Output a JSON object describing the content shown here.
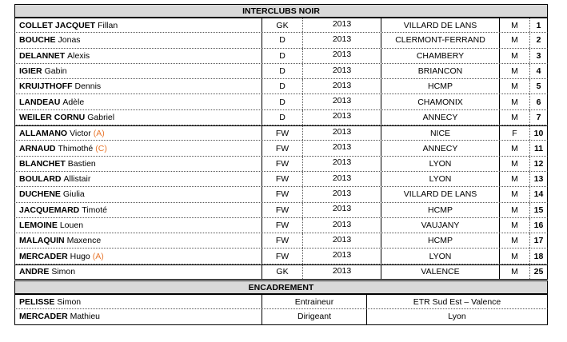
{
  "team": {
    "title": "INTERCLUBS NOIR",
    "players": [
      {
        "last": "COLLET JACQUET",
        "first": "Fillan",
        "tag": "",
        "pos": "GK",
        "year": "2013",
        "city": "VILLARD DE LANS",
        "sex": "M",
        "num": "1"
      },
      {
        "last": "BOUCHE",
        "first": "Jonas",
        "tag": "",
        "pos": "D",
        "year": "2013",
        "city": "CLERMONT-FERRAND",
        "sex": "M",
        "num": "2"
      },
      {
        "last": "DELANNET",
        "first": "Alexis",
        "tag": "",
        "pos": "D",
        "year": "2013",
        "city": "CHAMBERY",
        "sex": "M",
        "num": "3"
      },
      {
        "last": "IGIER",
        "first": "Gabin",
        "tag": "",
        "pos": "D",
        "year": "2013",
        "city": "BRIANCON",
        "sex": "M",
        "num": "4"
      },
      {
        "last": "KRUIJTHOFF",
        "first": "Dennis",
        "tag": "",
        "pos": "D",
        "year": "2013",
        "city": "HCMP",
        "sex": "M",
        "num": "5"
      },
      {
        "last": "LANDEAU",
        "first": "Adèle",
        "tag": "",
        "pos": "D",
        "year": "2013",
        "city": "CHAMONIX",
        "sex": "M",
        "num": "6"
      },
      {
        "last": "WEILER CORNU",
        "first": "Gabriel",
        "tag": "",
        "pos": "D",
        "year": "2013",
        "city": "ANNECY",
        "sex": "M",
        "num": "7"
      },
      {
        "last": "ALLAMANO",
        "first": "Victor",
        "tag": "(A)",
        "pos": "FW",
        "year": "2013",
        "city": "NICE",
        "sex": "F",
        "num": "10"
      },
      {
        "last": "ARNAUD",
        "first": "Thimothé",
        "tag": "(C)",
        "pos": "FW",
        "year": "2013",
        "city": "ANNECY",
        "sex": "M",
        "num": "11"
      },
      {
        "last": "BLANCHET",
        "first": "Bastien",
        "tag": "",
        "pos": "FW",
        "year": "2013",
        "city": "LYON",
        "sex": "M",
        "num": "12"
      },
      {
        "last": "BOULARD",
        "first": "Allistair",
        "tag": "",
        "pos": "FW",
        "year": "2013",
        "city": "LYON",
        "sex": "M",
        "num": "13"
      },
      {
        "last": "DUCHENE",
        "first": "Giulia",
        "tag": "",
        "pos": "FW",
        "year": "2013",
        "city": "VILLARD DE LANS",
        "sex": "M",
        "num": "14"
      },
      {
        "last": "JACQUEMARD",
        "first": "Timoté",
        "tag": "",
        "pos": "FW",
        "year": "2013",
        "city": "HCMP",
        "sex": "M",
        "num": "15"
      },
      {
        "last": "LEMOINE",
        "first": "Louen",
        "tag": "",
        "pos": "FW",
        "year": "2013",
        "city": "VAUJANY",
        "sex": "M",
        "num": "16"
      },
      {
        "last": "MALAQUIN",
        "first": "Maxence",
        "tag": "",
        "pos": "FW",
        "year": "2013",
        "city": "HCMP",
        "sex": "M",
        "num": "17"
      },
      {
        "last": "MERCADER",
        "first": "Hugo",
        "tag": "(A)",
        "pos": "FW",
        "year": "2013",
        "city": "LYON",
        "sex": "M",
        "num": "18"
      },
      {
        "last": "ANDRE",
        "first": "Simon",
        "tag": "",
        "pos": "GK",
        "year": "2013",
        "city": "VALENCE",
        "sex": "M",
        "num": "25"
      }
    ]
  },
  "staff": {
    "title": "ENCADREMENT",
    "members": [
      {
        "last": "PELISSE",
        "first": "Simon",
        "role": "Entraineur",
        "org": "ETR Sud Est – Valence"
      },
      {
        "last": "MERCADER",
        "first": "Mathieu",
        "role": "Dirigeant",
        "org": "Lyon"
      }
    ]
  },
  "colors": {
    "header_bg": "#d9d9d9",
    "tag": "#e8772e"
  }
}
